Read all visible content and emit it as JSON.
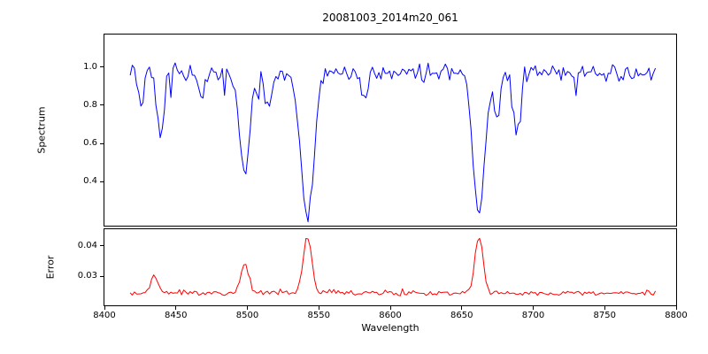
{
  "figure": {
    "title": "20081003_2014m20_061",
    "xlabel": "Wavelength",
    "background": "#ffffff"
  },
  "axes": {
    "xticks": [
      {
        "value": 8400,
        "label": "8400"
      },
      {
        "value": 8450,
        "label": "8450"
      },
      {
        "value": 8500,
        "label": "8500"
      },
      {
        "value": 8550,
        "label": "8550"
      },
      {
        "value": 8600,
        "label": "8600"
      },
      {
        "value": 8650,
        "label": "8650"
      },
      {
        "value": 8700,
        "label": "8700"
      },
      {
        "value": 8750,
        "label": "8750"
      },
      {
        "value": 8800,
        "label": "8800"
      }
    ]
  },
  "chart_data": [
    {
      "type": "line",
      "name": "spectrum",
      "ylabel": "Spectrum",
      "color": "#0000ff",
      "xlim": [
        8400,
        8800
      ],
      "ylim": [
        0.17,
        1.17
      ],
      "x_start": 8418,
      "x_end": 8786,
      "x_step": 1.5,
      "yticks": [
        {
          "value": 0.4,
          "label": "0.4"
        },
        {
          "value": 0.6,
          "label": "0.6"
        },
        {
          "value": 0.8,
          "label": "0.8"
        },
        {
          "value": 1.0,
          "label": "1.0"
        }
      ],
      "baseline": 0.97,
      "noise_amplitude": 0.055,
      "dip_probability": 0.05,
      "dip_scale": 0.14,
      "cap": 1.09,
      "seed": 42,
      "absorption_lines": [
        {
          "center": 8426,
          "floor": 0.8,
          "width": 2.0
        },
        {
          "center": 8439,
          "floor": 0.66,
          "width": 2.5
        },
        {
          "center": 8468,
          "floor": 0.83,
          "width": 2.0
        },
        {
          "center": 8498,
          "floor": 0.44,
          "width": 3.5
        },
        {
          "center": 8514,
          "floor": 0.78,
          "width": 2.2
        },
        {
          "center": 8542,
          "floor": 0.215,
          "width": 4.5
        },
        {
          "center": 8582,
          "floor": 0.82,
          "width": 2.0
        },
        {
          "center": 8662,
          "floor": 0.22,
          "width": 4.0
        },
        {
          "center": 8675,
          "floor": 0.75,
          "width": 2.2
        },
        {
          "center": 8688,
          "floor": 0.67,
          "width": 2.5
        }
      ]
    },
    {
      "type": "line",
      "name": "error",
      "ylabel": "Error",
      "color": "#ff0000",
      "xlim": [
        8400,
        8800
      ],
      "ylim": [
        0.0205,
        0.0455
      ],
      "x_start": 8418,
      "x_end": 8786,
      "x_step": 1.5,
      "yticks": [
        {
          "value": 0.03,
          "label": "0.03"
        },
        {
          "value": 0.04,
          "label": "0.04"
        }
      ],
      "baseline": 0.0245,
      "noise_amplitude": 0.0009,
      "spike_probability": 0.06,
      "spike_scale": 0.0016,
      "seed": 7,
      "peaks": [
        {
          "center": 8435,
          "height": 0.03,
          "width": 2.5
        },
        {
          "center": 8498,
          "height": 0.0345,
          "width": 2.5
        },
        {
          "center": 8542,
          "height": 0.0428,
          "width": 3.0
        },
        {
          "center": 8662,
          "height": 0.043,
          "width": 2.8
        }
      ]
    }
  ]
}
